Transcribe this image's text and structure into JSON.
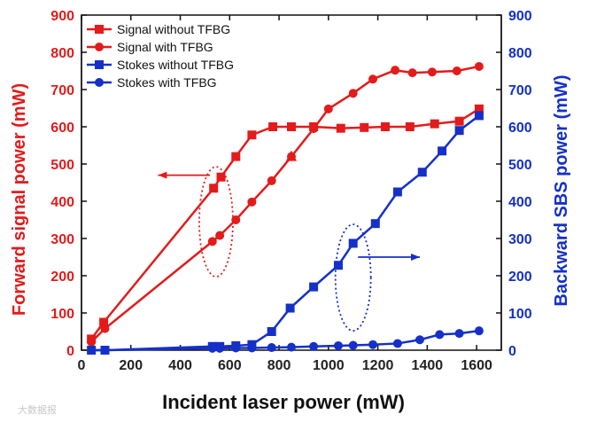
{
  "chart_data": {
    "type": "line",
    "xlabel": "Incident laser power (mW)",
    "ylabel_left": "Forward signal power (mW)",
    "ylabel_right": "Backward SBS power (mW)",
    "xlim": [
      0,
      1700
    ],
    "ylim_left": [
      0,
      900
    ],
    "ylim_right": [
      0,
      900
    ],
    "x_ticks": [
      0,
      200,
      400,
      600,
      800,
      1000,
      1200,
      1400,
      1600
    ],
    "y_ticks": [
      0,
      100,
      200,
      300,
      400,
      500,
      600,
      700,
      800,
      900
    ],
    "grid": false,
    "legend_position": "top-left",
    "colors": {
      "signal": "#e31b1b",
      "stokes": "#1530c8"
    },
    "series": [
      {
        "name": "Signal without TFBG",
        "marker": "square",
        "color": "#e31b1b",
        "axis": "left",
        "points": [
          [
            40,
            30
          ],
          [
            90,
            75
          ],
          [
            535,
            435
          ],
          [
            565,
            465
          ],
          [
            625,
            520
          ],
          [
            690,
            578
          ],
          [
            775,
            600
          ],
          [
            850,
            600
          ],
          [
            940,
            600
          ],
          [
            1050,
            596
          ],
          [
            1145,
            598
          ],
          [
            1230,
            600
          ],
          [
            1330,
            600
          ],
          [
            1430,
            608
          ],
          [
            1530,
            615
          ],
          [
            1610,
            648
          ]
        ]
      },
      {
        "name": "Signal with TFBG",
        "marker": "circle",
        "color": "#e31b1b",
        "axis": "left",
        "points": [
          [
            40,
            22
          ],
          [
            95,
            58
          ],
          [
            530,
            292
          ],
          [
            560,
            308
          ],
          [
            625,
            350
          ],
          [
            690,
            398
          ],
          [
            770,
            455
          ],
          [
            850,
            520
          ],
          [
            940,
            595
          ],
          [
            1000,
            648
          ],
          [
            1100,
            690
          ],
          [
            1180,
            728
          ],
          [
            1270,
            752
          ],
          [
            1340,
            745
          ],
          [
            1420,
            747
          ],
          [
            1520,
            750
          ],
          [
            1610,
            762
          ]
        ]
      },
      {
        "name": "Stokes without TFBG",
        "marker": "square",
        "color": "#1530c8",
        "axis": "right",
        "points": [
          [
            40,
            0
          ],
          [
            95,
            0
          ],
          [
            530,
            10
          ],
          [
            560,
            10
          ],
          [
            625,
            12
          ],
          [
            690,
            15
          ],
          [
            770,
            50
          ],
          [
            845,
            113
          ],
          [
            940,
            170
          ],
          [
            1040,
            228
          ],
          [
            1100,
            287
          ],
          [
            1190,
            340
          ],
          [
            1280,
            425
          ],
          [
            1380,
            478
          ],
          [
            1460,
            535
          ],
          [
            1530,
            590
          ],
          [
            1610,
            630
          ]
        ]
      },
      {
        "name": "Stokes with TFBG",
        "marker": "circle",
        "color": "#1530c8",
        "axis": "right",
        "points": [
          [
            40,
            0
          ],
          [
            95,
            0
          ],
          [
            530,
            5
          ],
          [
            560,
            5
          ],
          [
            625,
            6
          ],
          [
            690,
            6
          ],
          [
            770,
            7
          ],
          [
            850,
            8
          ],
          [
            940,
            10
          ],
          [
            1040,
            12
          ],
          [
            1100,
            13
          ],
          [
            1180,
            15
          ],
          [
            1280,
            18
          ],
          [
            1370,
            28
          ],
          [
            1450,
            42
          ],
          [
            1530,
            45
          ],
          [
            1610,
            52
          ]
        ]
      }
    ]
  },
  "watermark": "大数据报"
}
